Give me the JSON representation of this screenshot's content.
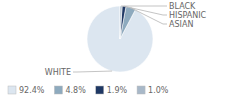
{
  "chart_data": {
    "type": "pie",
    "categories": [
      "WHITE",
      "ASIAN",
      "HISPANIC",
      "BLACK"
    ],
    "values": [
      92.4,
      4.8,
      1.9,
      1.0
    ],
    "value_labels": [
      "92.4%",
      "4.8%",
      "1.9%",
      "1.0%"
    ],
    "colors": [
      "#dce6f0",
      "#8eaabe",
      "#1f3864",
      "#a8b8c8"
    ],
    "legend": "bottom"
  }
}
